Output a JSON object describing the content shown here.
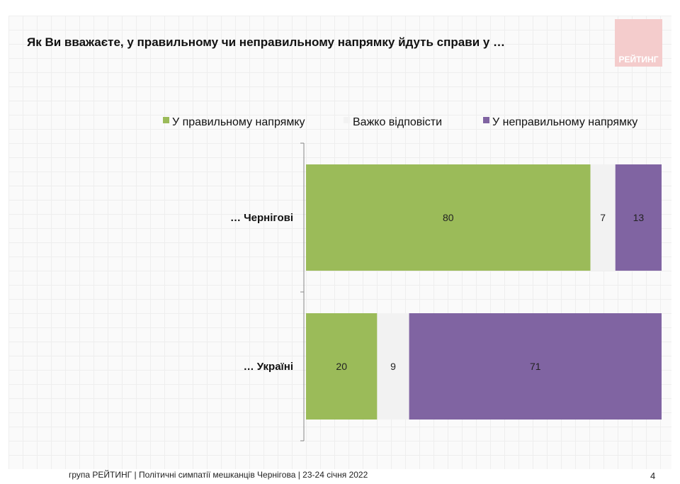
{
  "title": "Як Ви вважаєте, у правильному чи неправильному напрямку йдуть справи у …",
  "logo_text": "РЕЙТИНГ",
  "footer": "група РЕЙТИНГ  | Політичні симпатії мешканців Чернігова | 23-24 січня 2022",
  "page_number": "4",
  "chart_data": {
    "type": "bar",
    "orientation": "horizontal",
    "stacked": true,
    "categories": [
      "… Чернігові",
      "… Україні"
    ],
    "series": [
      {
        "name": "У правильному напрямку",
        "color": "#9bbb59",
        "values": [
          80,
          20
        ]
      },
      {
        "name": "Важко відповісти",
        "color": "#f2f2f2",
        "values": [
          7,
          9
        ]
      },
      {
        "name": "У неправильному напрямку",
        "color": "#8064a2",
        "values": [
          13,
          71
        ]
      }
    ],
    "xlim": [
      0,
      100
    ],
    "legend_position": "top",
    "grid": false
  }
}
